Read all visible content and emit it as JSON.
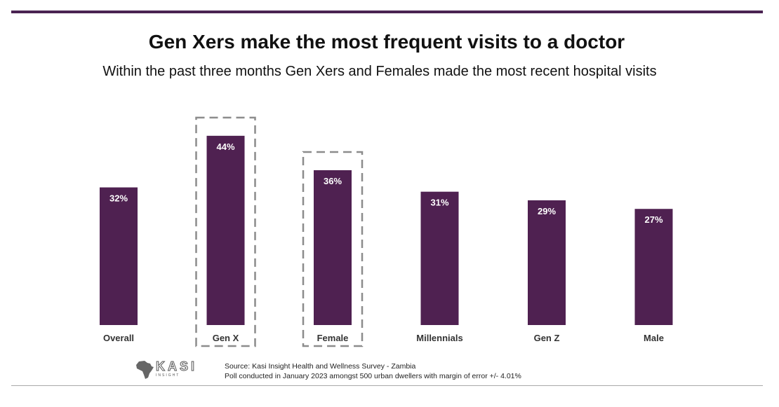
{
  "title": "Gen Xers make the most frequent visits to a doctor",
  "subtitle": "Within the past three months Gen Xers and Females made the most recent hospital visits",
  "source": {
    "line1": "Source: Kasi Insight Health and Wellness Survey - Zambia",
    "line2": "Poll conducted in January 2023 amongst 500 urban dwellers with margin of error +/- 4.01%"
  },
  "logo": {
    "name": "KASI",
    "tagline": "INSIGHT",
    "icon": "africa-map-icon"
  },
  "colors": {
    "bar": "#4f2151",
    "rule": "#4a2352",
    "highlight_border": "#8c8c8c",
    "label": "#ffffff"
  },
  "chart_data": {
    "type": "bar",
    "title": "Gen Xers make the most frequent visits to a doctor",
    "categories": [
      "Overall",
      "Gen X",
      "Female",
      "Millennials",
      "Gen Z",
      "Male"
    ],
    "values": [
      32,
      44,
      36,
      31,
      29,
      27
    ],
    "value_labels": [
      "32%",
      "44%",
      "36%",
      "31%",
      "29%",
      "27%"
    ],
    "highlighted": [
      "Gen X",
      "Female"
    ],
    "xlabel": "",
    "ylabel": "",
    "ylim": [
      0,
      50
    ],
    "grid": false,
    "legend": "none"
  }
}
